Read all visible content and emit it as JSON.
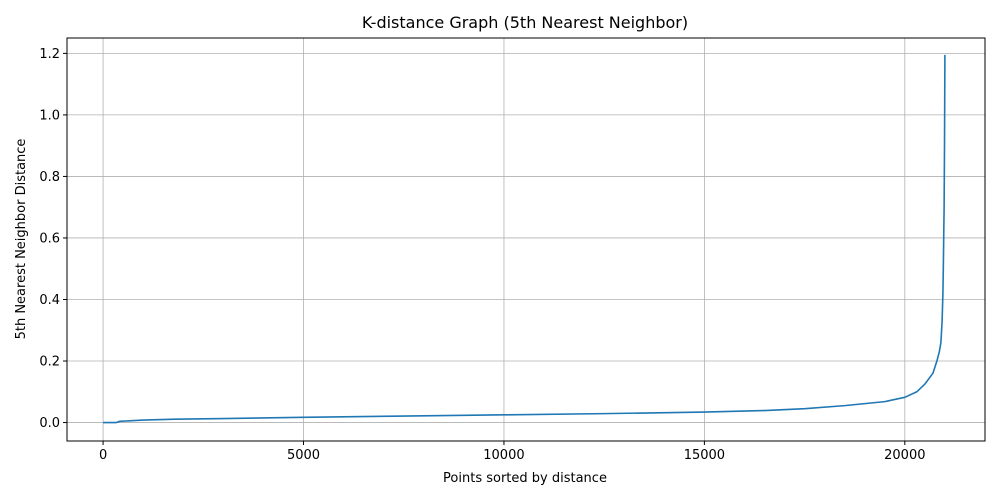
{
  "chart_data": {
    "type": "line",
    "title": "K-distance Graph (5th Nearest Neighbor)",
    "xlabel": "Points sorted by distance",
    "ylabel": "5th Nearest Neighbor Distance",
    "xlim": [
      -900,
      22000
    ],
    "ylim": [
      -0.06,
      1.25
    ],
    "xticks": [
      0,
      5000,
      10000,
      15000,
      20000
    ],
    "xtick_labels": [
      "0",
      "5000",
      "10000",
      "15000",
      "20000"
    ],
    "yticks": [
      0.0,
      0.2,
      0.4,
      0.6,
      0.8,
      1.0,
      1.2
    ],
    "ytick_labels": [
      "0.0",
      "0.2",
      "0.4",
      "0.6",
      "0.8",
      "1.0",
      "1.2"
    ],
    "grid": true,
    "legend": "none",
    "line_color": "#1f77b4",
    "series": [
      {
        "x": [
          0,
          330,
          420,
          1000,
          1800,
          3000,
          5000,
          7500,
          10000,
          12500,
          15000,
          16500,
          17500,
          18500,
          19500,
          20000,
          20300,
          20500,
          20700,
          20800,
          20860,
          20900,
          20930,
          20950,
          20960,
          20970,
          20980,
          20985,
          20990,
          20995,
          21000
        ],
        "y": [
          0.0,
          0.0,
          0.004,
          0.008,
          0.011,
          0.013,
          0.017,
          0.021,
          0.025,
          0.029,
          0.034,
          0.039,
          0.045,
          0.055,
          0.068,
          0.082,
          0.1,
          0.125,
          0.16,
          0.2,
          0.23,
          0.26,
          0.33,
          0.42,
          0.5,
          0.6,
          0.7,
          0.8,
          0.9,
          1.05,
          1.195
        ]
      }
    ]
  }
}
